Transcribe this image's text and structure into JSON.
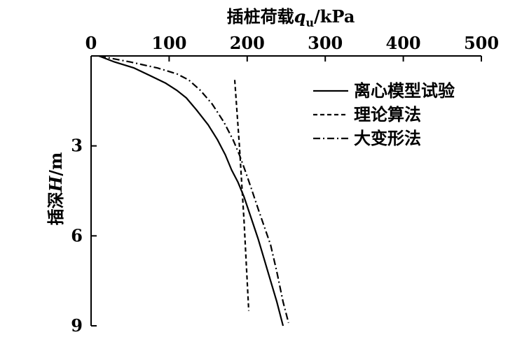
{
  "chart_data": {
    "type": "line",
    "title": "",
    "xlabel": {
      "prefix": "插桩荷载",
      "var": "q",
      "sub": "u",
      "suffix": "/kPa"
    },
    "ylabel": {
      "prefix": "插深",
      "var": "H",
      "suffix": "/m"
    },
    "xlim": [
      0,
      500
    ],
    "ylim": [
      0,
      9
    ],
    "xticks": [
      0,
      100,
      200,
      300,
      400,
      500
    ],
    "yticks": [
      0,
      3,
      6,
      9
    ],
    "xtick_labels": [
      "0",
      "100",
      "200",
      "300",
      "400",
      "500"
    ],
    "ytick_labels": [
      "3",
      "6",
      "9"
    ],
    "x_axis_position": "top",
    "y_inverted": true,
    "grid": false,
    "legend_position": "top-right",
    "series": [
      {
        "name": "离心模型试验",
        "style": "solid",
        "points": [
          [
            10,
            0
          ],
          [
            30,
            0.2
          ],
          [
            55,
            0.4
          ],
          [
            75,
            0.65
          ],
          [
            95,
            0.9
          ],
          [
            110,
            1.15
          ],
          [
            122,
            1.4
          ],
          [
            135,
            1.8
          ],
          [
            150,
            2.3
          ],
          [
            162,
            2.8
          ],
          [
            172,
            3.3
          ],
          [
            180,
            3.8
          ],
          [
            188,
            4.2
          ],
          [
            196,
            4.7
          ],
          [
            205,
            5.4
          ],
          [
            214,
            6.1
          ],
          [
            222,
            6.8
          ],
          [
            230,
            7.5
          ],
          [
            238,
            8.2
          ],
          [
            246,
            9.0
          ]
        ]
      },
      {
        "name": "理论算法",
        "style": "dashed",
        "points": [
          [
            184,
            0.8
          ],
          [
            190,
            3.0
          ],
          [
            196,
            5.5
          ],
          [
            202,
            8.5
          ]
        ]
      },
      {
        "name": "大变形法",
        "style": "dashdot",
        "points": [
          [
            10,
            0
          ],
          [
            50,
            0.2
          ],
          [
            85,
            0.4
          ],
          [
            110,
            0.6
          ],
          [
            125,
            0.8
          ],
          [
            140,
            1.15
          ],
          [
            155,
            1.6
          ],
          [
            170,
            2.2
          ],
          [
            182,
            2.8
          ],
          [
            190,
            3.3
          ],
          [
            197,
            3.8
          ],
          [
            205,
            4.4
          ],
          [
            214,
            5.1
          ],
          [
            222,
            5.7
          ],
          [
            230,
            6.3
          ],
          [
            238,
            7.2
          ],
          [
            246,
            8.2
          ],
          [
            253,
            8.9
          ]
        ]
      }
    ]
  }
}
